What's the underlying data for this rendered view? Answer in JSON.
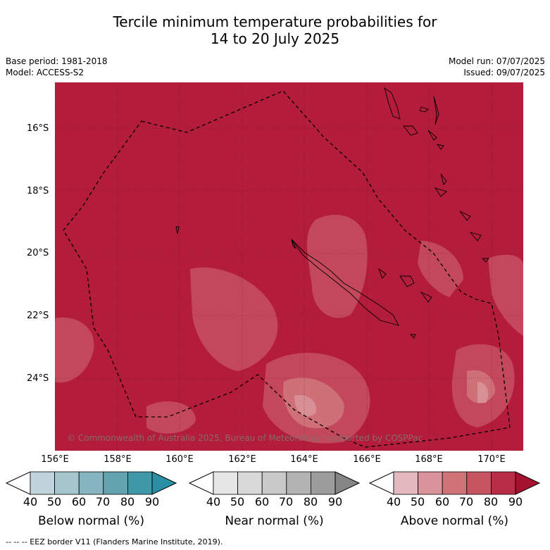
{
  "title_line1": "Tercile minimum temperature probabilities for",
  "title_line2": "14 to 20 July 2025",
  "meta": {
    "base_period": "Base period: 1981-2018",
    "model": "Model: ACCESS-S2",
    "model_run": "Model run: 07/07/2025",
    "issued": "Issued: 09/07/2025"
  },
  "map": {
    "lat_labels": [
      "16°S",
      "18°S",
      "20°S",
      "22°S",
      "24°S"
    ],
    "lon_labels": [
      "156°E",
      "158°E",
      "160°E",
      "162°E",
      "164°E",
      "166°E",
      "168°E",
      "170°E"
    ],
    "copyright": "© Commonwealth of Australia 2025, Bureau of Meteorology, supported by COSPPac",
    "dominant_category": "Above normal",
    "dominant_probability_range": "80-90",
    "colors": {
      "sea_above_80": "#b31c3b",
      "above_70": "#c4485c",
      "above_60": "#cf7078",
      "near_light": "#d98f96"
    }
  },
  "colorbars": [
    {
      "title": "Below normal (%)",
      "ticks": [
        "40",
        "50",
        "60",
        "70",
        "80",
        "90"
      ],
      "colors": [
        "#ffffff",
        "#c0d5db",
        "#a5c6cd",
        "#86b5c0",
        "#63a3b0",
        "#3f98a8",
        "#2a8fa3"
      ]
    },
    {
      "title": "Near normal (%)",
      "ticks": [
        "40",
        "50",
        "60",
        "70",
        "80",
        "90"
      ],
      "colors": [
        "#ffffff",
        "#e6e6e6",
        "#d9d9d9",
        "#c9c9c9",
        "#b3b3b3",
        "#9c9c9c",
        "#858585"
      ]
    },
    {
      "title": "Above normal (%)",
      "ticks": [
        "40",
        "50",
        "60",
        "70",
        "80",
        "90"
      ],
      "colors": [
        "#ffffff",
        "#e3b8bf",
        "#d9939b",
        "#cf7378",
        "#c55560",
        "#b82c45",
        "#a3122e"
      ]
    }
  ],
  "footer": "--  --  -- EEZ border V11 (Flanders Marine Institute, 2019)."
}
